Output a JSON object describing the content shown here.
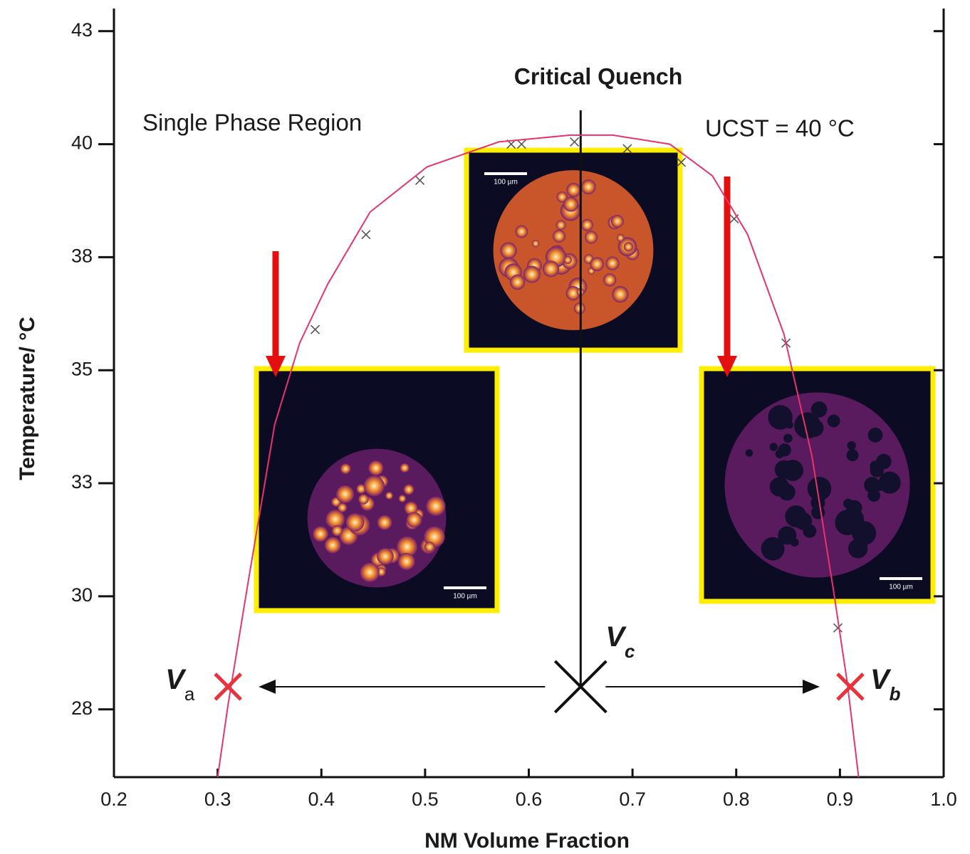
{
  "chart_data": {
    "type": "scatter",
    "x_label": "NM Volume Fraction",
    "y_label": "Temperature/ °C",
    "xlim": [
      0.2,
      1.0
    ],
    "xticks": [
      0.2,
      0.3,
      0.4,
      0.5,
      0.6,
      0.7,
      0.8,
      0.9,
      {
        "value": 1,
        "label": "1.0"
      }
    ],
    "ylim": [
      26,
      43
    ],
    "yticks": [
      {
        "value": 42.5,
        "label": "43"
      },
      40,
      {
        "value": 37.5,
        "label": "38"
      },
      35,
      {
        "value": 32.5,
        "label": "33"
      },
      30,
      {
        "value": 27.5,
        "label": "28"
      }
    ],
    "series": [
      {
        "style": "marker",
        "color": "#555555",
        "x": [
          0.394,
          0.443,
          0.495,
          0.583,
          0.593,
          0.644,
          0.695,
          0.747,
          0.798,
          0.848,
          0.898,
          0.911
        ],
        "values": [
          35.9,
          38.0,
          39.2,
          40.0,
          40.0,
          40.05,
          39.9,
          39.6,
          38.35,
          35.6,
          29.3,
          28.0
        ]
      },
      {
        "style": "line",
        "color": "#e8336b",
        "x": [
          0.3,
          0.31,
          0.33,
          0.355,
          0.379,
          0.406,
          0.447,
          0.502,
          0.571,
          0.64,
          0.681,
          0.736,
          0.777,
          0.811,
          0.846,
          0.873,
          0.894,
          0.907,
          0.918
        ],
        "values": [
          26.0,
          27.6,
          30.4,
          33.8,
          35.6,
          36.9,
          38.5,
          39.5,
          40.05,
          40.2,
          40.2,
          40.0,
          39.3,
          38.0,
          35.8,
          33.1,
          30.1,
          28.1,
          26.0
        ]
      }
    ],
    "annotations": {
      "critical_quench": "Critical Quench",
      "single_phase": "Single Phase Region",
      "ucst": "UCST = 40 °C"
    },
    "critical_line": {
      "x": 0.65
    },
    "markers": [
      {
        "label": "V",
        "subscript": "a",
        "x": 0.31,
        "y": 28,
        "color": "#e8323c"
      },
      {
        "label": "V",
        "subscript": "c",
        "x": 0.65,
        "y": 28,
        "color": "#111111"
      },
      {
        "label": "V",
        "subscript": "b",
        "x": 0.91,
        "y": 28,
        "color": "#e8323c"
      }
    ],
    "insets": [
      {
        "scale_label": "100 µm"
      },
      {
        "scale_label": "100 µm"
      },
      {
        "scale_label": "100 µm"
      }
    ]
  }
}
